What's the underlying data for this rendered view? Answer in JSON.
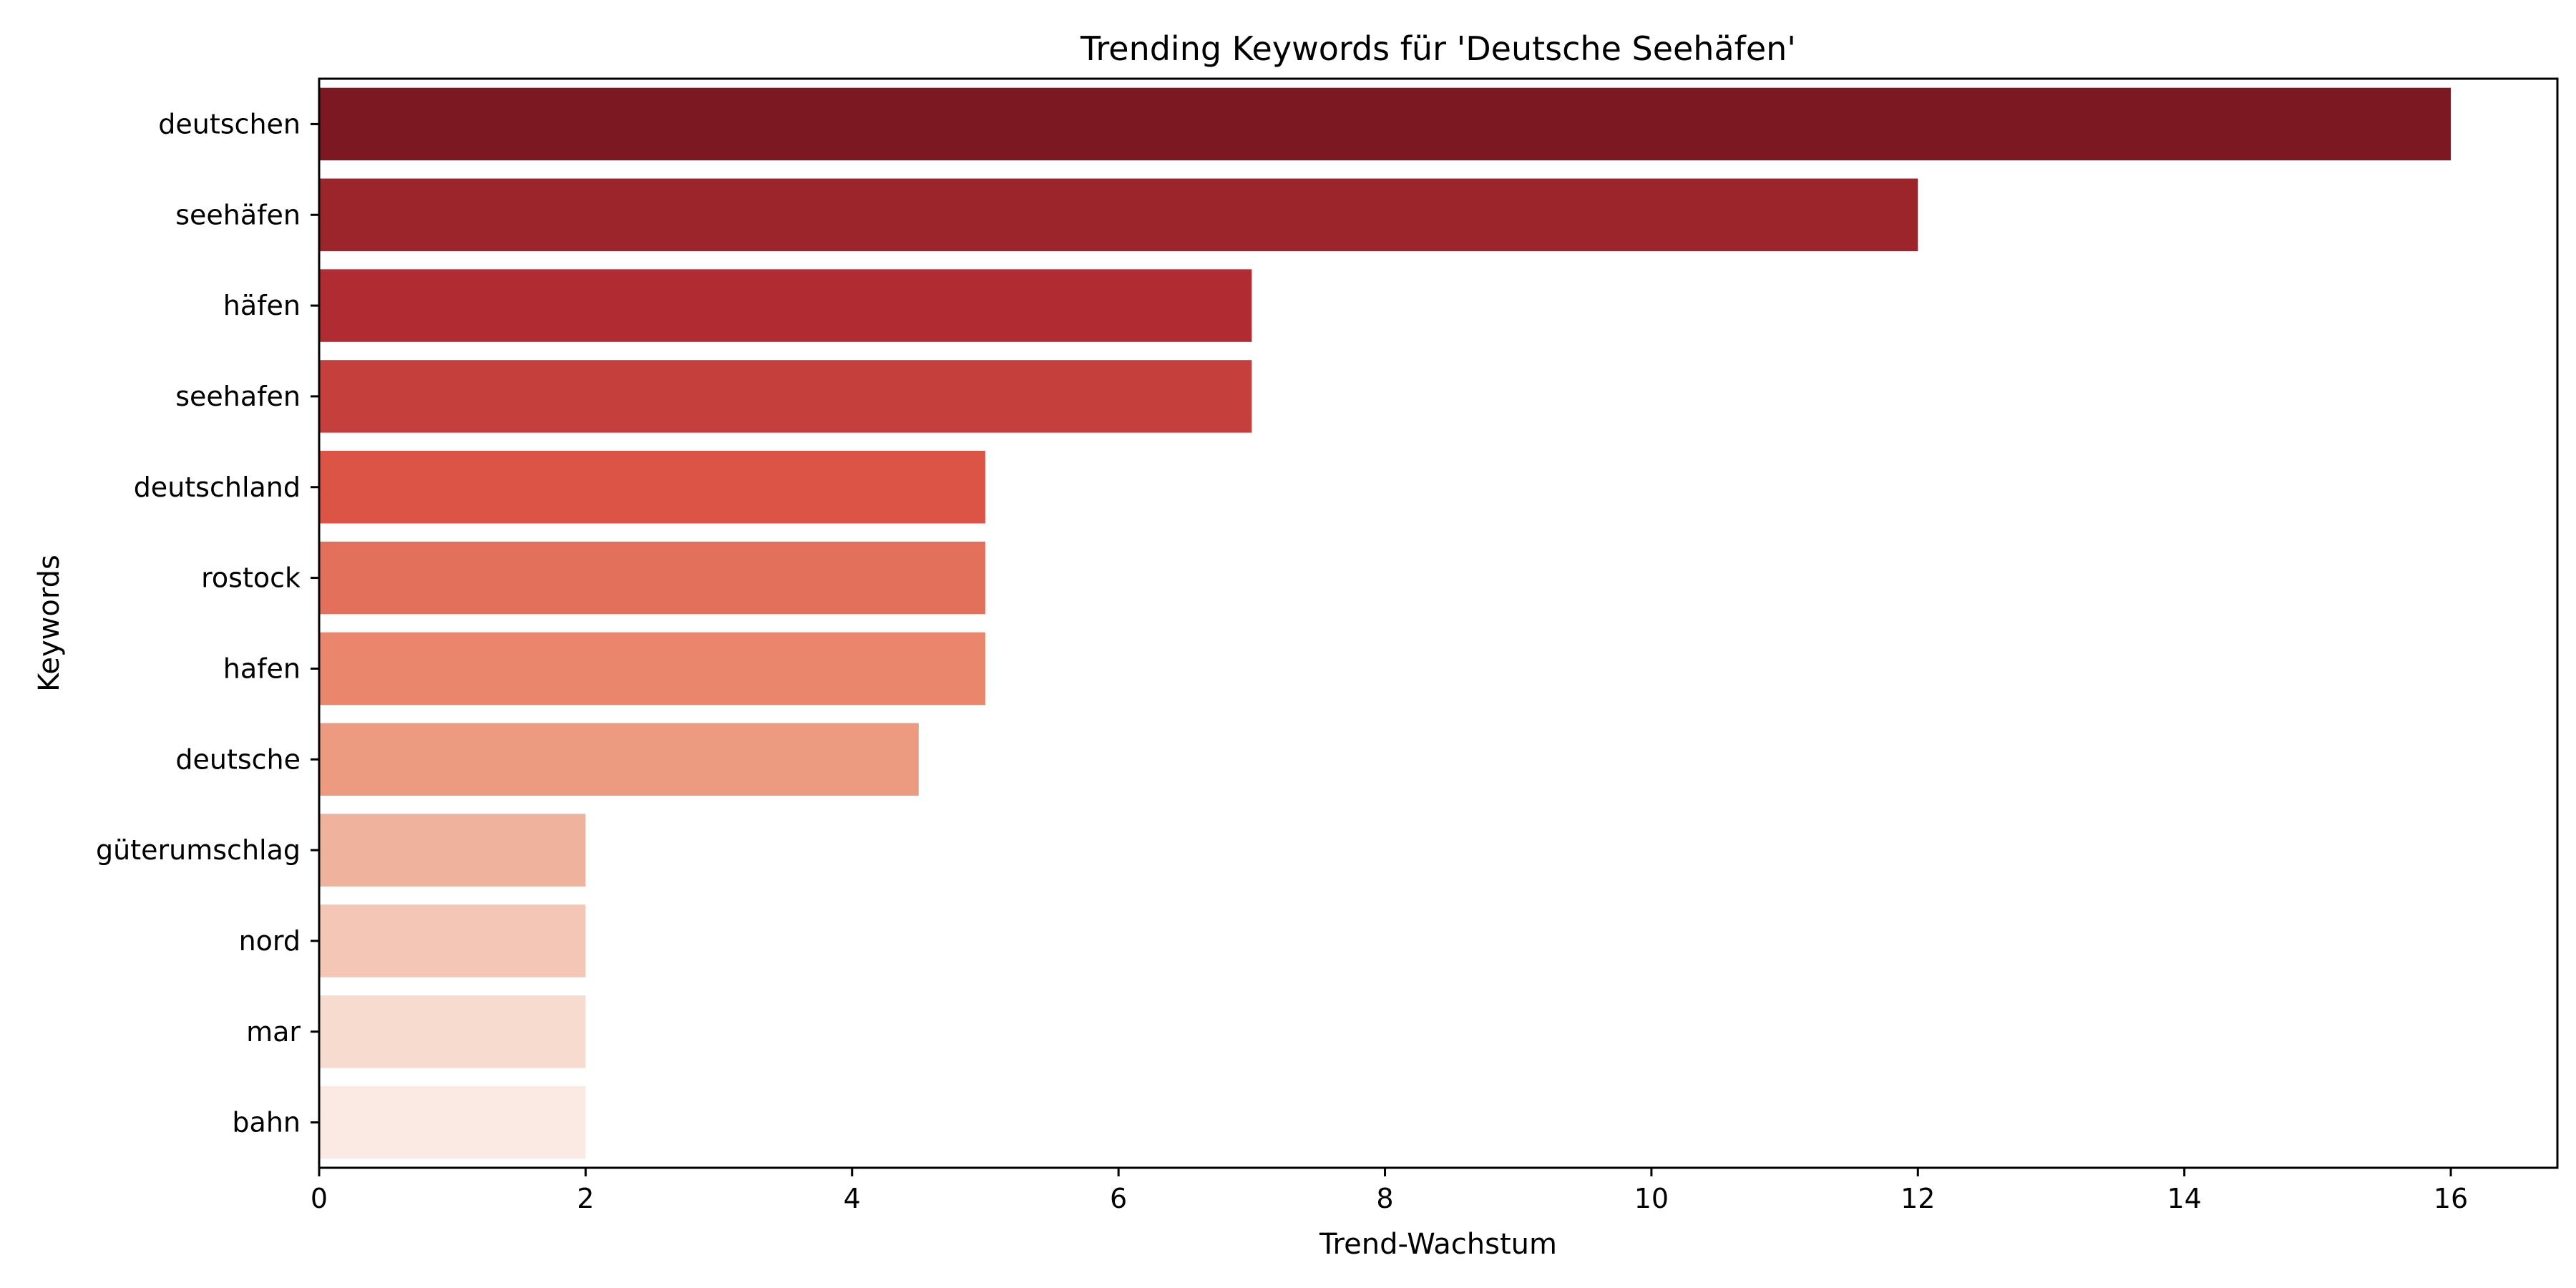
{
  "chart_data": {
    "type": "bar",
    "orientation": "horizontal",
    "title": "Trending Keywords für 'Deutsche Seehäfen'",
    "xlabel": "Trend-Wachstum",
    "ylabel": "Keywords",
    "xlim": [
      0,
      16.8
    ],
    "xticks": [
      0,
      2,
      4,
      6,
      8,
      10,
      12,
      14,
      16
    ],
    "grid": false,
    "legend": "none",
    "categories": [
      "deutschen",
      "seehäfen",
      "häfen",
      "seehafen",
      "deutschland",
      "rostock",
      "hafen",
      "deutsche",
      "güterumschlag",
      "nord",
      "mar",
      "bahn"
    ],
    "values": [
      16,
      12,
      7,
      7,
      5,
      5,
      5,
      4.5,
      2,
      2,
      2,
      2
    ],
    "colors": [
      "#7b1821",
      "#9c242b",
      "#b02b32",
      "#c53f3d",
      "#dc5446",
      "#e3705a",
      "#e9866c",
      "#ec9a80",
      "#efb29c",
      "#f3c6b5",
      "#f7dbcf",
      "#fbeae3"
    ]
  }
}
